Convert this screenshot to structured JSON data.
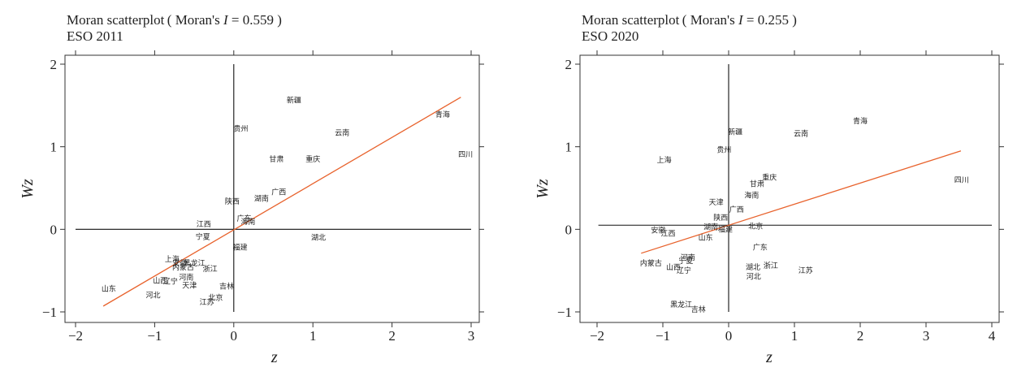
{
  "chart_data": [
    {
      "type": "scatter",
      "title_prefix": "Moran scatterplot ( Moran's ",
      "title_stat": "I",
      "title_suffix": " = 0.559 )",
      "subtitle": "ESO 2011",
      "xlabel": "z",
      "ylabel": "Wz",
      "xlim": [
        -2.1,
        3.1
      ],
      "ylim": [
        -1.1,
        2.05
      ],
      "xticks": [
        -2,
        -1,
        0,
        1,
        2,
        3
      ],
      "yticks": [
        -1,
        0,
        1,
        2
      ],
      "zero_lines": {
        "x": 0,
        "y": 0,
        "x_range": [
          -2,
          3
        ],
        "y_range": [
          -1,
          2
        ]
      },
      "fit_line": {
        "color": "#e8622c",
        "x": [
          -1.65,
          2.87
        ],
        "y": [
          -0.93,
          1.6
        ]
      },
      "points": [
        {
          "label": "新疆",
          "x": 0.76,
          "y": 1.56
        },
        {
          "label": "贵州",
          "x": 0.09,
          "y": 1.22
        },
        {
          "label": "云南",
          "x": 1.37,
          "y": 1.17
        },
        {
          "label": "青海",
          "x": 2.64,
          "y": 1.39
        },
        {
          "label": "四川",
          "x": 2.93,
          "y": 0.91
        },
        {
          "label": "甘肃",
          "x": 0.54,
          "y": 0.85
        },
        {
          "label": "重庆",
          "x": 1.0,
          "y": 0.85
        },
        {
          "label": "广西",
          "x": 0.57,
          "y": 0.45
        },
        {
          "label": "湖南",
          "x": 0.35,
          "y": 0.37
        },
        {
          "label": "陕西",
          "x": -0.02,
          "y": 0.34
        },
        {
          "label": "广东",
          "x": 0.13,
          "y": 0.13
        },
        {
          "label": "江西",
          "x": -0.38,
          "y": 0.06
        },
        {
          "label": "海南",
          "x": 0.18,
          "y": 0.09
        },
        {
          "label": "宁夏",
          "x": -0.39,
          "y": -0.09
        },
        {
          "label": "湖北",
          "x": 1.07,
          "y": -0.1
        },
        {
          "label": "福建",
          "x": 0.08,
          "y": -0.22
        },
        {
          "label": "上海",
          "x": -0.78,
          "y": -0.36
        },
        {
          "label": "安徽",
          "x": -0.68,
          "y": -0.41
        },
        {
          "label": "黑龙江",
          "x": -0.5,
          "y": -0.41
        },
        {
          "label": "内蒙古",
          "x": -0.64,
          "y": -0.46
        },
        {
          "label": "浙江",
          "x": -0.3,
          "y": -0.48
        },
        {
          "label": "河南",
          "x": -0.6,
          "y": -0.58
        },
        {
          "label": "山西",
          "x": -0.93,
          "y": -0.62
        },
        {
          "label": "辽宁",
          "x": -0.8,
          "y": -0.63
        },
        {
          "label": "天津",
          "x": -0.56,
          "y": -0.68
        },
        {
          "label": "吉林",
          "x": -0.09,
          "y": -0.69
        },
        {
          "label": "山东",
          "x": -1.58,
          "y": -0.72
        },
        {
          "label": "河北",
          "x": -1.02,
          "y": -0.8
        },
        {
          "label": "北京",
          "x": -0.23,
          "y": -0.83
        },
        {
          "label": "江苏",
          "x": -0.34,
          "y": -0.88
        }
      ]
    },
    {
      "type": "scatter",
      "title_prefix": "Moran scatterplot ( Moran's ",
      "title_stat": "I",
      "title_suffix": " = 0.255 )",
      "subtitle": "ESO 2020",
      "xlabel": "z",
      "ylabel": "Wz",
      "xlim": [
        -2.2,
        4.1
      ],
      "ylim": [
        -1.1,
        2.05
      ],
      "xticks": [
        -2,
        -1,
        0,
        1,
        2,
        3,
        4
      ],
      "yticks": [
        -1,
        0,
        1,
        2
      ],
      "zero_lines": {
        "x": 0,
        "y": 0.05,
        "x_range": [
          -1.98,
          4
        ],
        "y_range": [
          -1,
          2
        ]
      },
      "fit_line": {
        "color": "#e8622c",
        "x": [
          -1.33,
          3.53
        ],
        "y": [
          -0.29,
          0.95
        ]
      },
      "points": [
        {
          "label": "青海",
          "x": 2.0,
          "y": 1.31
        },
        {
          "label": "新疆",
          "x": 0.1,
          "y": 1.18
        },
        {
          "label": "云南",
          "x": 1.1,
          "y": 1.16
        },
        {
          "label": "贵州",
          "x": -0.07,
          "y": 0.96
        },
        {
          "label": "上海",
          "x": -0.98,
          "y": 0.84
        },
        {
          "label": "重庆",
          "x": 0.62,
          "y": 0.63
        },
        {
          "label": "四川",
          "x": 3.54,
          "y": 0.6
        },
        {
          "label": "甘肃",
          "x": 0.43,
          "y": 0.55
        },
        {
          "label": "海南",
          "x": 0.35,
          "y": 0.41
        },
        {
          "label": "天津",
          "x": -0.19,
          "y": 0.33
        },
        {
          "label": "广西",
          "x": 0.12,
          "y": 0.24
        },
        {
          "label": "陕西",
          "x": -0.12,
          "y": 0.14
        },
        {
          "label": "湖南",
          "x": -0.27,
          "y": 0.03
        },
        {
          "label": "福建",
          "x": -0.05,
          "y": 0.0
        },
        {
          "label": "北京",
          "x": 0.41,
          "y": 0.04
        },
        {
          "label": "安徽",
          "x": -1.07,
          "y": -0.01
        },
        {
          "label": "江西",
          "x": -0.92,
          "y": -0.05
        },
        {
          "label": "山东",
          "x": -0.35,
          "y": -0.1
        },
        {
          "label": "广东",
          "x": 0.48,
          "y": -0.22
        },
        {
          "label": "河南",
          "x": -0.62,
          "y": -0.34
        },
        {
          "label": "宁夏",
          "x": -0.65,
          "y": -0.38
        },
        {
          "label": "内蒙古",
          "x": -1.18,
          "y": -0.41
        },
        {
          "label": "山西",
          "x": -0.84,
          "y": -0.46
        },
        {
          "label": "辽宁",
          "x": -0.68,
          "y": -0.5
        },
        {
          "label": "湖北",
          "x": 0.37,
          "y": -0.46
        },
        {
          "label": "浙江",
          "x": 0.64,
          "y": -0.44
        },
        {
          "label": "江苏",
          "x": 1.17,
          "y": -0.5
        },
        {
          "label": "河北",
          "x": 0.38,
          "y": -0.57
        },
        {
          "label": "黑龙江",
          "x": -0.72,
          "y": -0.91
        },
        {
          "label": "吉林",
          "x": -0.46,
          "y": -0.97
        }
      ]
    }
  ]
}
